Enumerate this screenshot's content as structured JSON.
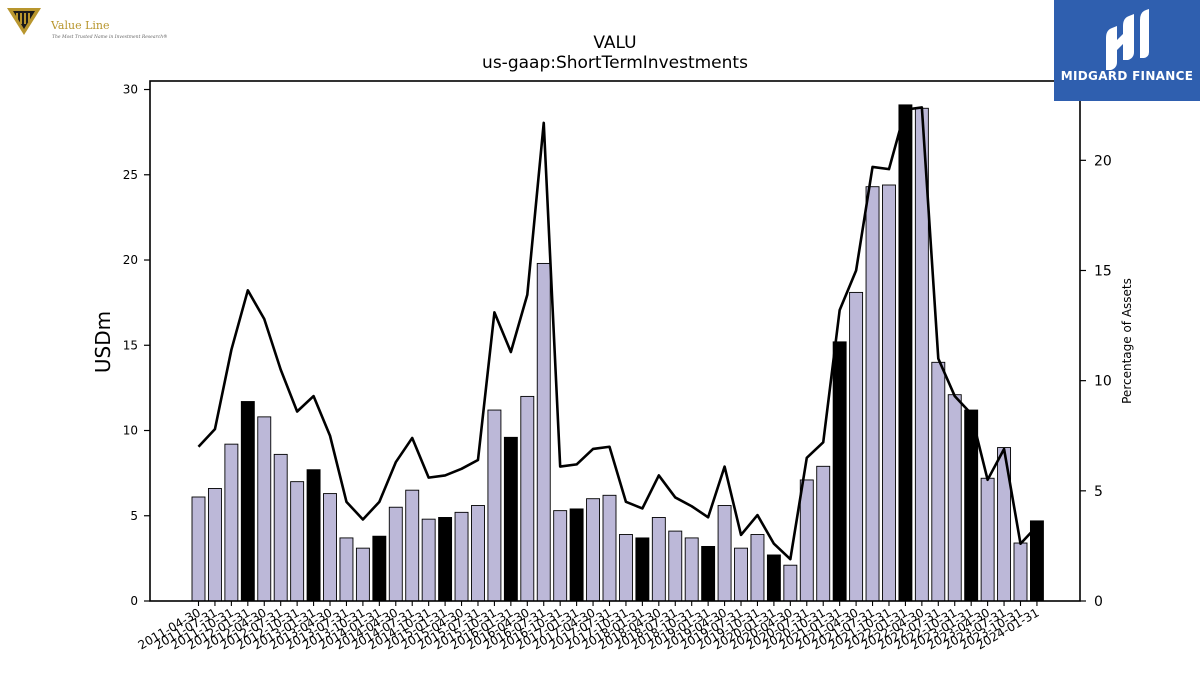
{
  "header": {
    "ticker": "VALU",
    "concept": "us-gaap:ShortTermInvestments"
  },
  "logos": {
    "left": {
      "name": "Value Line",
      "tagline": "The Most Trusted Name in Investment Research®",
      "color": "#b8962e"
    },
    "right": {
      "name": "MIDGARD FINANCE",
      "color": "#2f5faf"
    }
  },
  "chart_data": {
    "type": "bar",
    "title": "VALU",
    "subtitle": "us-gaap:ShortTermInvestments",
    "ylabel": "USDm",
    "y2label": "Percentage of Assets",
    "ylim": [
      0,
      30.5
    ],
    "y2lim": [
      0,
      23.6
    ],
    "yticks": [
      0,
      5,
      10,
      15,
      20,
      25,
      30
    ],
    "y2ticks": [
      0,
      5,
      10,
      15,
      20
    ],
    "grid": false,
    "colors": {
      "bar": "#bcb8d8",
      "bar_highlight": "#000000",
      "line": "#000000"
    },
    "categories": [
      "2011-04-30",
      "2011-07-31",
      "2011-10-31",
      "2012-01-31",
      "2012-04-30",
      "2012-07-31",
      "2012-10-31",
      "2013-01-31",
      "2013-04-30",
      "2013-07-31",
      "2013-10-31",
      "2014-01-31",
      "2014-04-30",
      "2014-07-31",
      "2014-10-31",
      "2015-01-31",
      "2015-04-30",
      "2015-07-31",
      "2015-10-31",
      "2016-01-31",
      "2016-04-30",
      "2016-07-31",
      "2016-10-31",
      "2017-01-31",
      "2017-04-30",
      "2017-07-31",
      "2017-10-31",
      "2018-01-31",
      "2018-04-30",
      "2018-07-31",
      "2018-10-31",
      "2019-01-31",
      "2019-04-30",
      "2019-07-31",
      "2019-10-31",
      "2020-01-31",
      "2020-04-30",
      "2020-07-31",
      "2020-10-31",
      "2021-01-31",
      "2021-04-30",
      "2021-07-31",
      "2021-10-31",
      "2022-01-31",
      "2022-04-30",
      "2022-07-31",
      "2022-10-31",
      "2023-01-31",
      "2023-04-30",
      "2023-07-31",
      "2023-10-31",
      "2024-01-31"
    ],
    "series": [
      {
        "type": "bar",
        "values": [
          6.1,
          6.6,
          9.2,
          11.7,
          10.8,
          8.6,
          7.0,
          7.7,
          6.3,
          3.7,
          3.1,
          3.8,
          5.5,
          6.5,
          4.8,
          4.9,
          5.2,
          5.6,
          11.2,
          9.6,
          12.0,
          19.8,
          5.3,
          5.4,
          6.0,
          6.2,
          3.9,
          3.7,
          4.9,
          4.1,
          3.7,
          3.2,
          5.6,
          3.1,
          3.9,
          2.7,
          2.1,
          7.1,
          7.9,
          15.2,
          18.1,
          24.3,
          24.4,
          29.1,
          28.9,
          14.0,
          12.1,
          11.2,
          7.2,
          9.0,
          3.4,
          4.7
        ],
        "highlight": [
          false,
          false,
          false,
          true,
          false,
          false,
          false,
          true,
          false,
          false,
          false,
          true,
          false,
          false,
          false,
          true,
          false,
          false,
          false,
          true,
          false,
          false,
          false,
          true,
          false,
          false,
          false,
          true,
          false,
          false,
          false,
          true,
          false,
          false,
          false,
          true,
          false,
          false,
          false,
          true,
          false,
          false,
          false,
          true,
          false,
          false,
          false,
          true,
          false,
          false,
          false,
          true
        ]
      },
      {
        "type": "line",
        "axis": "right",
        "values": [
          7.0,
          7.8,
          11.4,
          14.1,
          12.8,
          10.5,
          8.6,
          9.3,
          7.5,
          4.5,
          3.7,
          4.5,
          6.3,
          7.4,
          5.6,
          5.7,
          6.0,
          6.4,
          13.1,
          11.3,
          13.9,
          21.7,
          6.1,
          6.2,
          6.9,
          7.0,
          4.5,
          4.2,
          5.7,
          4.7,
          4.3,
          3.8,
          6.1,
          3.0,
          3.9,
          2.6,
          1.9,
          6.5,
          7.2,
          13.2,
          15.0,
          19.7,
          19.6,
          22.3,
          22.4,
          11.0,
          9.3,
          8.5,
          5.5,
          6.9,
          2.6,
          3.4
        ]
      }
    ]
  }
}
